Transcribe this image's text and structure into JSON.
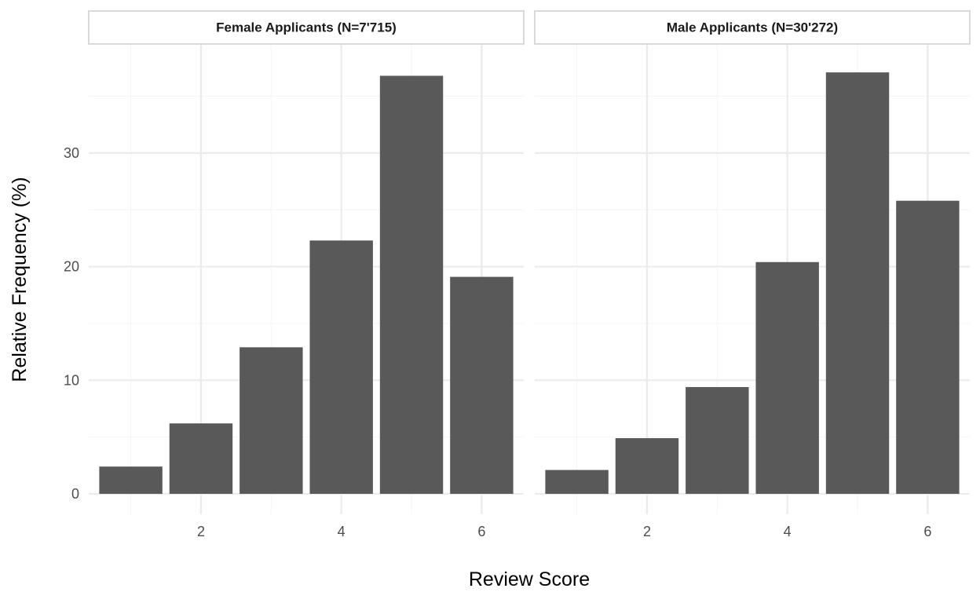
{
  "chart_data": {
    "type": "bar",
    "xlabel": "Review Score",
    "ylabel": "Relative Frequency (%)",
    "ylim": [
      -1.8,
      39.6
    ],
    "xlim": [
      0.4,
      6.6
    ],
    "x_ticks": [
      2,
      4,
      6
    ],
    "y_ticks": [
      0,
      10,
      20,
      30
    ],
    "grid": true,
    "colors": {
      "bar": "#595959",
      "grid_major": "#ebebeb",
      "grid_minor": "#f5f5f5",
      "strip_fill": "#ffffff",
      "strip_border": "#d9d9d9"
    },
    "panels": [
      {
        "title": "Female Applicants (N=7'715)",
        "x": [
          1,
          2,
          3,
          4,
          5,
          6
        ],
        "values": [
          2.4,
          6.2,
          12.9,
          22.3,
          36.8,
          19.1
        ]
      },
      {
        "title": "Male Applicants (N=30'272)",
        "x": [
          1,
          2,
          3,
          4,
          5,
          6
        ],
        "values": [
          2.1,
          4.9,
          9.4,
          20.4,
          37.1,
          25.8
        ]
      }
    ]
  }
}
